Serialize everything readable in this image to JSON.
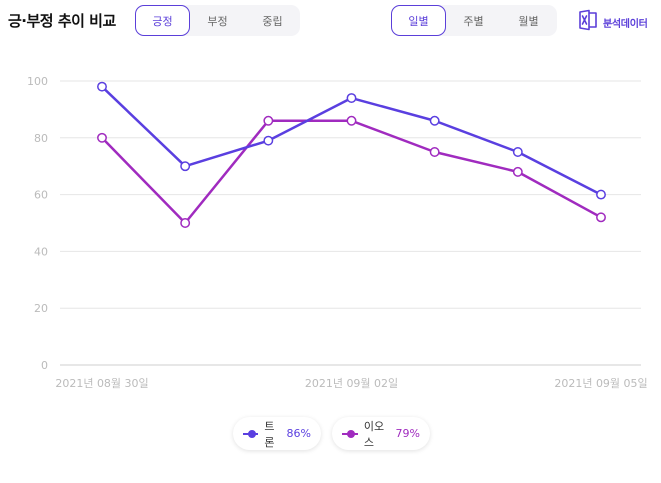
{
  "title": "긍·부정 추이 비교",
  "sentiment_tabs": [
    {
      "label": "긍정",
      "active": true
    },
    {
      "label": "부정",
      "active": false
    },
    {
      "label": "중립",
      "active": false
    }
  ],
  "period_tabs": [
    {
      "label": "일별",
      "active": true
    },
    {
      "label": "주별",
      "active": false
    },
    {
      "label": "월별",
      "active": false
    }
  ],
  "export": {
    "label": "분석데이터",
    "icon": "excel-icon"
  },
  "colors": {
    "accent": "#5b3fd9",
    "series1": "#5a3fe0",
    "series2": "#a02bbf",
    "grid": "#e6e6e6",
    "tick": "#bbbbbb"
  },
  "chart_data": {
    "type": "line",
    "x": [
      "2021년 08월 30일",
      "2021년 08월 31일",
      "2021년 09월 01일",
      "2021년 09월 02일",
      "2021년 09월 03일",
      "2021년 09월 04일",
      "2021년 09월 05일"
    ],
    "x_tick_labels": [
      "2021년 08월 30일",
      "2021년 09월 02일",
      "2021년 09월 05일"
    ],
    "y_ticks": [
      "0",
      "20",
      "40",
      "60",
      "80",
      "100"
    ],
    "ylim": [
      0,
      100
    ],
    "grid": true,
    "legend_position": "bottom-center",
    "series": [
      {
        "name": "트론",
        "pct": "86%",
        "color": "#5a3fe0",
        "values": [
          98,
          70,
          79,
          94,
          86,
          75,
          60
        ]
      },
      {
        "name": "이오스",
        "pct": "79%",
        "color": "#a02bbf",
        "values": [
          80,
          50,
          86,
          86,
          75,
          68,
          52
        ]
      }
    ]
  }
}
